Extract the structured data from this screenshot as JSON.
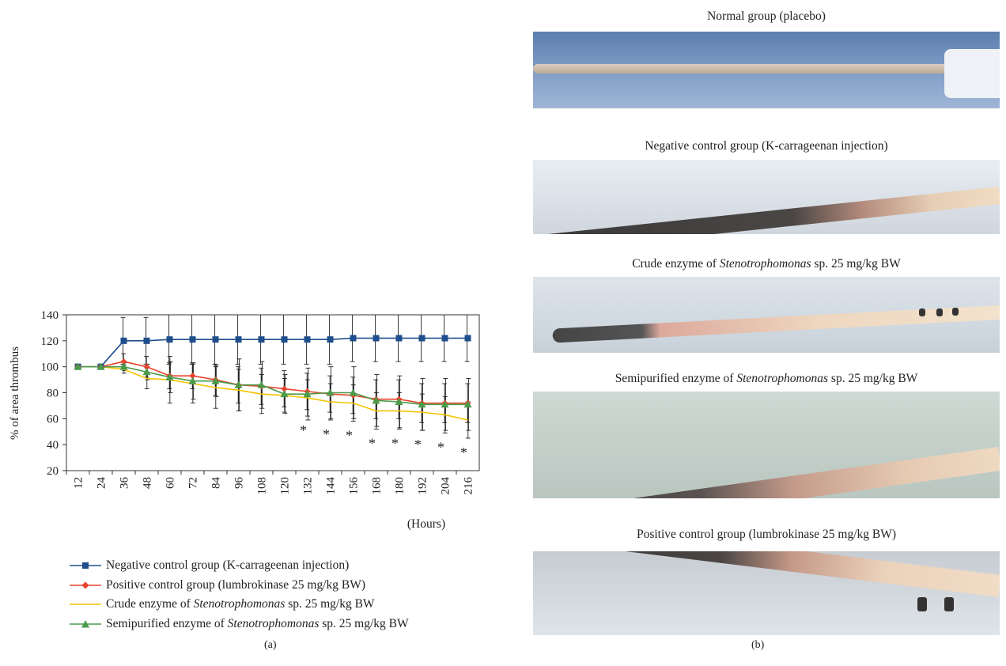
{
  "chart_data": {
    "type": "line",
    "xlabel": "(Hours)",
    "ylabel": "% of area thrombus",
    "ylim": [
      20,
      140
    ],
    "yticks": [
      20,
      40,
      60,
      80,
      100,
      120,
      140
    ],
    "categories": [
      "12",
      "24",
      "36",
      "48",
      "60",
      "72",
      "84",
      "96",
      "108",
      "120",
      "132",
      "144",
      "156",
      "168",
      "180",
      "192",
      "204",
      "216"
    ],
    "series": [
      {
        "name": "Negative control group (K-carrageenan injection)",
        "color": "#1f4e8c",
        "marker": "square",
        "values": [
          100,
          100,
          120,
          120,
          121,
          121,
          121,
          121,
          121,
          121,
          121,
          121,
          122,
          122,
          122,
          122,
          122,
          122
        ],
        "err": [
          0,
          0,
          18,
          18,
          19,
          19,
          19,
          19,
          19,
          19,
          19,
          19,
          18,
          18,
          18,
          18,
          18,
          18
        ]
      },
      {
        "name": "Positive control group (lumbrokinase 25 mg/kg BW)",
        "color": "#e8432c",
        "marker": "diamond",
        "values": [
          100,
          100,
          104,
          100,
          93,
          93,
          90,
          86,
          85,
          83,
          81,
          79,
          78,
          75,
          75,
          72,
          72,
          72
        ],
        "err": [
          0,
          0,
          6,
          8,
          10,
          10,
          12,
          14,
          14,
          14,
          14,
          14,
          14,
          15,
          15,
          15,
          15,
          15
        ]
      },
      {
        "name": "Crude enzyme of Stenotrophomonas sp. 25 mg/kg BW",
        "color": "#f5c400",
        "marker": "none",
        "values": [
          100,
          100,
          98,
          91,
          90,
          87,
          84,
          82,
          79,
          78,
          76,
          73,
          72,
          66,
          66,
          65,
          63,
          59
        ],
        "err": [
          0,
          0,
          3,
          8,
          18,
          15,
          16,
          16,
          15,
          13,
          14,
          14,
          14,
          14,
          14,
          14,
          14,
          14
        ]
      },
      {
        "name": "Semipurified enzyme of Stenotrophomonas sp. 25 mg/kg BW",
        "color": "#4a9a4a",
        "marker": "triangle",
        "values": [
          100,
          100,
          100,
          96,
          92,
          89,
          89,
          86,
          86,
          79,
          79,
          80,
          80,
          74,
          73,
          71,
          71,
          71
        ],
        "err": [
          0,
          0,
          3,
          6,
          12,
          14,
          12,
          20,
          18,
          15,
          20,
          20,
          20,
          20,
          20,
          20,
          20,
          20
        ]
      }
    ],
    "significance": {
      "symbol": "*",
      "categories": [
        "132",
        "144",
        "156",
        "168",
        "180",
        "192",
        "204",
        "216"
      ]
    }
  },
  "legend": {
    "items": [
      {
        "prefix": "Negative control group (K-carrageenan injection)",
        "italic": "",
        "suffix": ""
      },
      {
        "prefix": "Positive control group (lumbrokinase 25 mg/kg BW)",
        "italic": "",
        "suffix": ""
      },
      {
        "prefix": "Crude enzyme of ",
        "italic": "Stenotrophomonas",
        "suffix": " sp. 25 mg/kg BW"
      },
      {
        "prefix": "Semipurified enzyme of ",
        "italic": "Stenotrophomonas",
        "suffix": " sp. 25 mg/kg BW"
      }
    ]
  },
  "panel_labels": {
    "a": "(a)",
    "b": "(b)"
  },
  "photos": [
    {
      "prefix": "Normal group (placebo)",
      "italic": "",
      "suffix": ""
    },
    {
      "prefix": "Negative control group (K-carrageenan injection)",
      "italic": "",
      "suffix": ""
    },
    {
      "prefix": "Crude enzyme of ",
      "italic": "Stenotrophomonas",
      "suffix": " sp. 25 mg/kg BW"
    },
    {
      "prefix": "Semipurified enzyme of ",
      "italic": "Stenotrophomonas",
      "suffix": " sp. 25 mg/kg BW"
    },
    {
      "prefix": "Positive control group (lumbrokinase 25 mg/kg BW)",
      "italic": "",
      "suffix": ""
    }
  ]
}
